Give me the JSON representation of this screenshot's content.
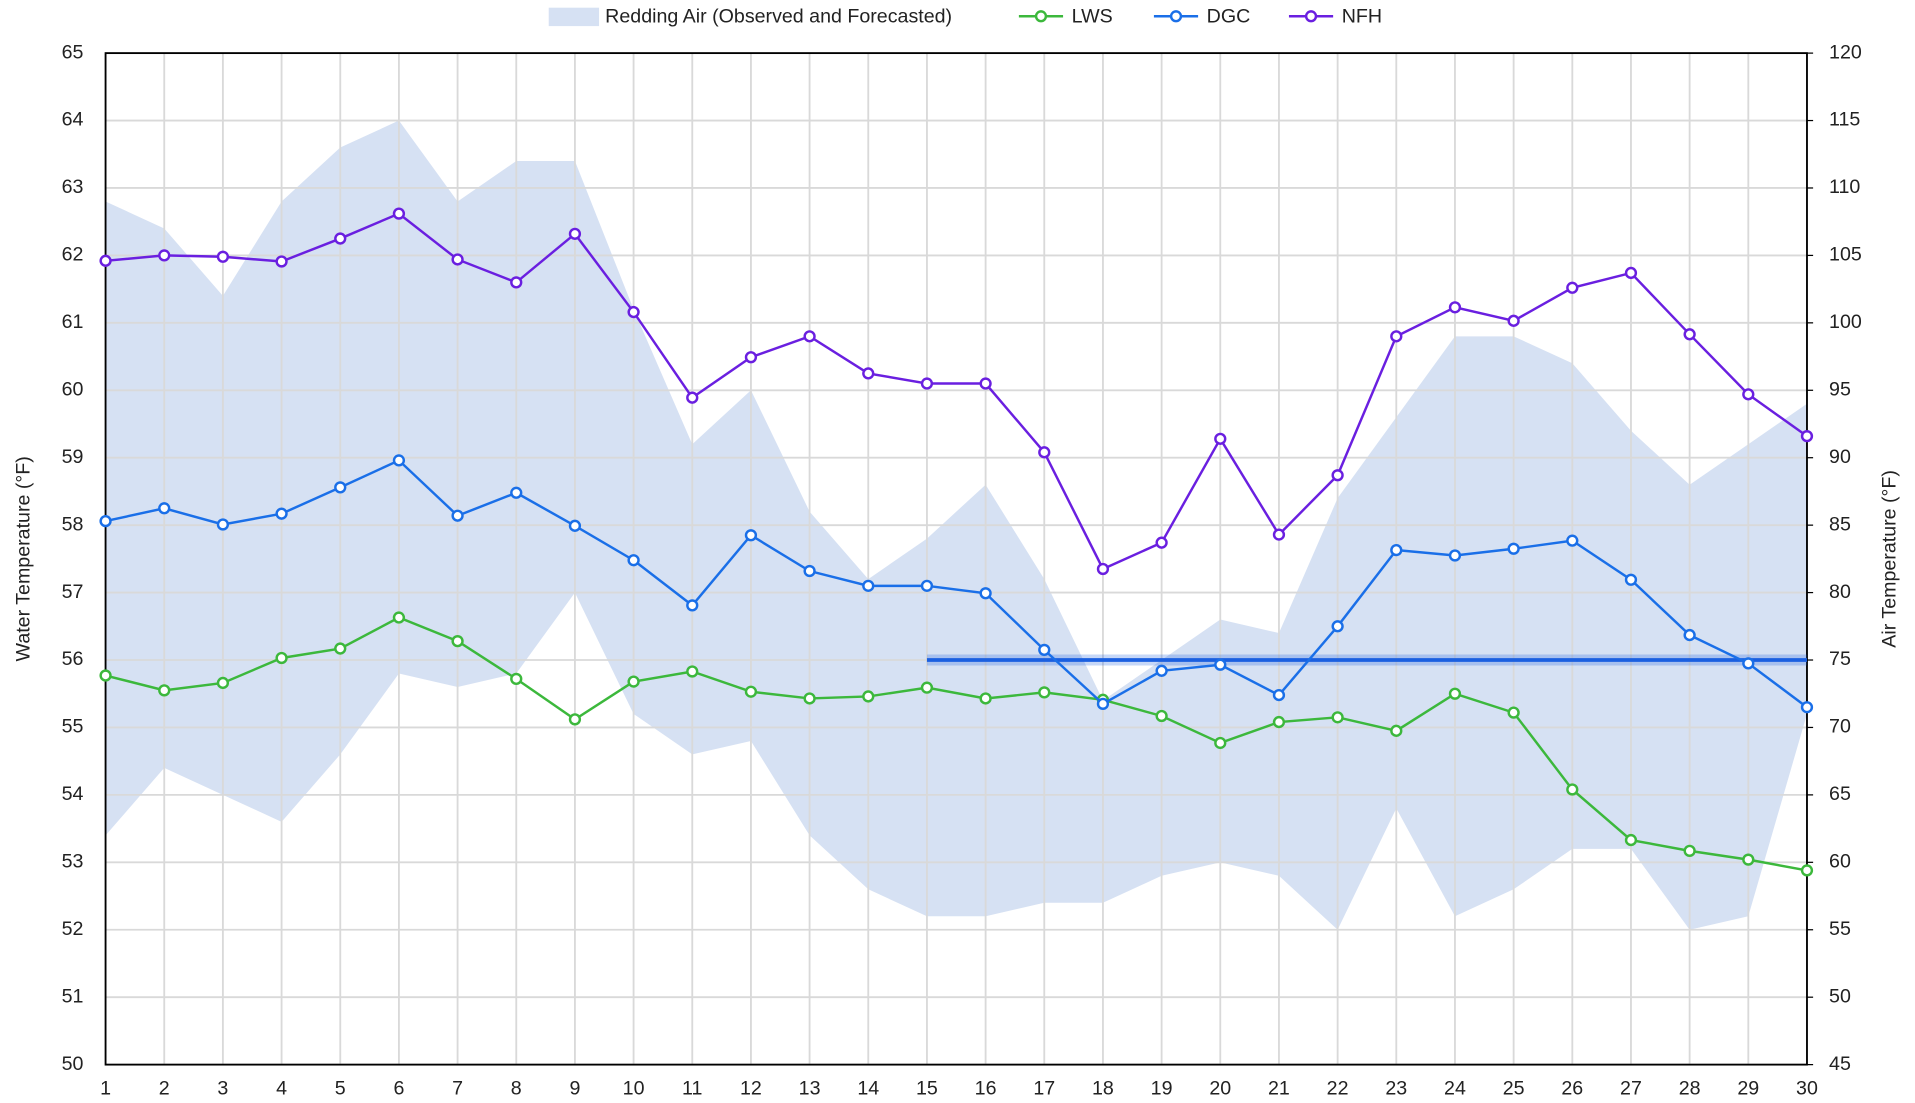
{
  "chart_data": {
    "type": "line",
    "x": [
      1,
      2,
      3,
      4,
      5,
      6,
      7,
      8,
      9,
      10,
      11,
      12,
      13,
      14,
      15,
      16,
      17,
      18,
      19,
      20,
      21,
      22,
      23,
      24,
      25,
      26,
      27,
      28,
      29,
      30
    ],
    "xlim": [
      1,
      30
    ],
    "xticks": [
      1,
      2,
      3,
      4,
      5,
      6,
      7,
      8,
      9,
      10,
      11,
      12,
      13,
      14,
      15,
      16,
      17,
      18,
      19,
      20,
      21,
      22,
      23,
      24,
      25,
      26,
      27,
      28,
      29,
      30
    ],
    "ylabel": "Water Temperature (°F)",
    "ylim": [
      50,
      65
    ],
    "yticks": [
      50,
      51,
      52,
      53,
      54,
      55,
      56,
      57,
      58,
      59,
      60,
      61,
      62,
      63,
      64,
      65
    ],
    "y2label": "Air Temperature (°F)",
    "y2lim": [
      45,
      120
    ],
    "y2ticks": [
      45,
      50,
      55,
      60,
      65,
      70,
      75,
      80,
      85,
      90,
      95,
      100,
      105,
      110,
      115,
      120
    ],
    "grid": true,
    "legend": "top",
    "band": {
      "name": "Redding Air (Observed and Forecasted)",
      "color": "#d6e1f3",
      "axis": "y2",
      "upper": [
        109,
        107,
        102,
        109,
        113,
        115,
        109,
        112,
        112,
        101,
        91,
        95,
        86,
        81,
        84,
        88,
        81,
        72,
        75,
        78,
        77,
        87,
        93,
        99,
        99,
        97,
        92,
        88,
        91,
        94
      ],
      "lower": [
        62,
        67,
        65,
        63,
        68,
        74,
        73,
        74,
        80,
        71,
        68,
        69,
        62,
        58,
        56,
        56,
        57,
        57,
        59,
        60,
        59,
        55,
        64,
        56,
        58,
        61,
        61,
        55,
        56,
        71
      ]
    },
    "series": [
      {
        "name": "LWS",
        "color": "#3cb83c",
        "values": [
          55.77,
          55.55,
          55.66,
          56.03,
          56.17,
          56.63,
          56.28,
          55.72,
          55.12,
          55.68,
          55.83,
          55.53,
          55.43,
          55.46,
          55.59,
          55.43,
          55.52,
          55.41,
          55.17,
          54.77,
          55.08,
          55.15,
          54.95,
          55.5,
          55.22,
          54.08,
          53.33,
          53.17,
          53.04,
          52.88
        ]
      },
      {
        "name": "DGC",
        "color": "#1a6fe8",
        "values": [
          58.06,
          58.25,
          58.01,
          58.17,
          58.56,
          58.96,
          58.14,
          58.48,
          57.99,
          57.48,
          56.81,
          57.85,
          57.32,
          57.1,
          57.1,
          56.99,
          56.15,
          55.35,
          55.84,
          55.93,
          55.48,
          56.5,
          57.63,
          57.55,
          57.65,
          57.77,
          57.19,
          56.37,
          55.95,
          55.3
        ]
      },
      {
        "name": "NFH",
        "color": "#6a1fe0",
        "values": [
          61.92,
          62.0,
          61.98,
          61.91,
          62.25,
          62.62,
          61.94,
          61.6,
          62.32,
          61.16,
          59.89,
          60.49,
          60.8,
          60.25,
          60.1,
          60.1,
          59.08,
          57.35,
          57.74,
          59.28,
          57.86,
          58.74,
          60.8,
          61.23,
          61.03,
          61.52,
          61.74,
          60.83,
          59.94,
          59.32
        ]
      }
    ],
    "reference_lines": [
      {
        "value": 56,
        "from": 15,
        "to": 30,
        "color": "#1a5fe0"
      }
    ]
  }
}
